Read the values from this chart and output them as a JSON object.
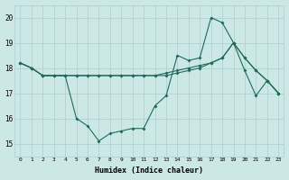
{
  "xlabel": "Humidex (Indice chaleur)",
  "bg_color": "#cce8e4",
  "grid_color": "#aaceca",
  "line_color": "#1e6b5e",
  "xlim": [
    -0.5,
    23.5
  ],
  "ylim": [
    14.5,
    20.5
  ],
  "xticks": [
    0,
    1,
    2,
    3,
    4,
    5,
    6,
    7,
    8,
    9,
    10,
    11,
    12,
    13,
    14,
    15,
    16,
    17,
    18,
    19,
    20,
    21,
    22,
    23
  ],
  "yticks": [
    15,
    16,
    17,
    18,
    19,
    20
  ],
  "series": [
    [
      18.2,
      18.0,
      17.7,
      17.7,
      17.7,
      16.0,
      15.7,
      15.1,
      15.4,
      15.5,
      15.6,
      15.6,
      16.5,
      16.9,
      18.5,
      18.3,
      18.4,
      20.0,
      19.8,
      19.0,
      17.9,
      16.9,
      17.5,
      17.0
    ],
    [
      18.2,
      18.0,
      17.7,
      17.7,
      17.7,
      17.7,
      17.7,
      17.7,
      17.7,
      17.7,
      17.7,
      17.7,
      17.7,
      17.7,
      17.8,
      17.9,
      18.0,
      18.2,
      18.4,
      19.0,
      18.4,
      17.9,
      17.5,
      17.0
    ],
    [
      18.2,
      18.0,
      17.7,
      17.7,
      17.7,
      17.7,
      17.7,
      17.7,
      17.7,
      17.7,
      17.7,
      17.7,
      17.7,
      17.8,
      17.9,
      18.0,
      18.1,
      18.2,
      18.4,
      19.0,
      18.4,
      17.9,
      17.5,
      17.0
    ]
  ]
}
